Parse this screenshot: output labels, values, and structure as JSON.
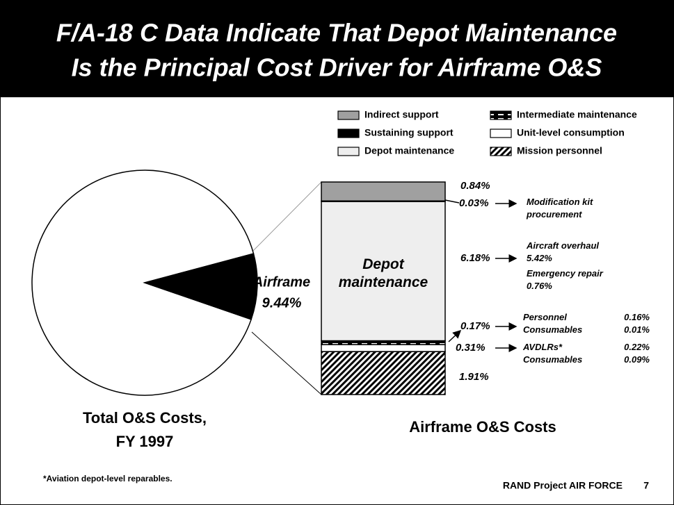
{
  "header": {
    "title": [
      "F/A-18 C Data Indicate That Depot Maintenance",
      "Is the Principal Cost Driver for Airframe O&S"
    ]
  },
  "chart_data": [
    {
      "type": "pie",
      "title": [
        "Total O&S Costs,",
        "FY 1997"
      ],
      "categories": [
        null,
        "Airframe"
      ],
      "values": [
        90.56,
        9.44
      ],
      "value_labels": [
        null,
        "9.44%"
      ],
      "colors": [
        "#ffffff",
        "#000000"
      ]
    },
    {
      "type": "stacked_bar",
      "title": "Airframe O&S Costs",
      "series": [
        {
          "name": "Indirect support",
          "color": "#a0a0a0",
          "values": [
            0.84
          ],
          "value_labels": [
            "0.84%"
          ]
        },
        {
          "name": "Sustaining support",
          "color": "#000000",
          "values": [
            0.03
          ],
          "value_labels": [
            "0.03%"
          ],
          "breakdown": [
            {
              "name": "Modification kit procurement"
            }
          ]
        },
        {
          "name": "Depot maintenance",
          "color": "#eeeeee",
          "values": [
            6.18
          ],
          "value_labels": [
            "6.18%"
          ],
          "breakdown": [
            {
              "name": "Aircraft overhaul",
              "value": 5.42,
              "value_label": "5.42%"
            },
            {
              "name": "Emergency repair",
              "value": 0.76,
              "value_label": "0.76%"
            }
          ]
        },
        {
          "name": "Intermediate maintenance",
          "color": "#000000",
          "pattern": "dash",
          "values": [
            0.17
          ],
          "value_labels": [
            "0.17%"
          ],
          "breakdown": [
            {
              "name": "Personnel",
              "value": 0.16,
              "value_label": "0.16%"
            },
            {
              "name": "Consumables",
              "value": 0.01,
              "value_label": "0.01%"
            }
          ]
        },
        {
          "name": "Unit-level consumption",
          "color": "#ffffff",
          "values": [
            0.31
          ],
          "value_labels": [
            "0.31%"
          ],
          "breakdown": [
            {
              "name": "AVDLRs*",
              "value": 0.22,
              "value_label": "0.22%"
            },
            {
              "name": "Consumables",
              "value": 0.09,
              "value_label": "0.09%"
            }
          ]
        },
        {
          "name": "Mission personnel",
          "color": "#000000",
          "pattern": "hatch",
          "values": [
            1.91
          ],
          "value_labels": [
            "1.91%"
          ]
        }
      ]
    }
  ],
  "footer": {
    "footnote": "*Aviation depot-level reparables.",
    "source": "RAND Project AIR FORCE",
    "page": 7
  }
}
